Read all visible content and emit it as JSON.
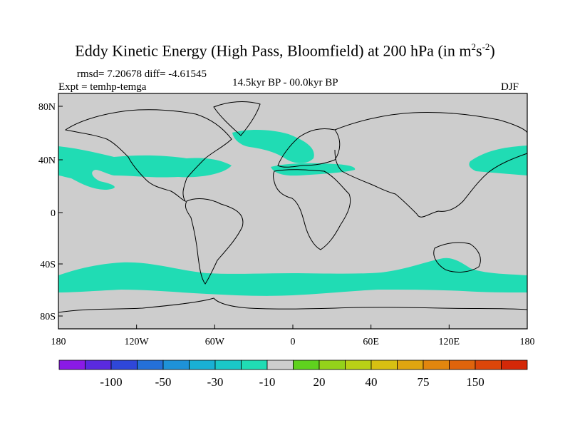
{
  "title": {
    "main": "Eddy Kinetic Energy (High Pass, Bloomfield) at 200 hPa (in m",
    "exp1": "2",
    "mid": "s",
    "exp2": "-2",
    "end": ")"
  },
  "stats": "rmsd= 7.20678 diff= -4.61545",
  "expt": "Expt = temhp-temga",
  "period": "14.5kyr BP - 00.0kyr BP",
  "season": "DJF",
  "lat_labels": [
    "80N",
    "40N",
    "0",
    "40S",
    "80S"
  ],
  "lon_labels": [
    "180",
    "120W",
    "60W",
    "0",
    "60E",
    "120E",
    "180"
  ],
  "colorbar": {
    "colors": [
      "#8a1ae6",
      "#5a2ae0",
      "#2f47d9",
      "#2470d8",
      "#1e92d8",
      "#19b0d4",
      "#1ac8c8",
      "#20dcb4",
      "#cdcdcd",
      "#5fd21e",
      "#94d21a",
      "#b9d016",
      "#d8c012",
      "#e0a510",
      "#e2860e",
      "#e0640c",
      "#dc460a",
      "#d42808"
    ],
    "labels": [
      "-100",
      "-50",
      "-30",
      "-10",
      "20",
      "40",
      "75",
      "150"
    ]
  },
  "colors": {
    "land_bg": "#cdcdcd",
    "anomaly": "#20dcb4",
    "coast": "#000000"
  }
}
